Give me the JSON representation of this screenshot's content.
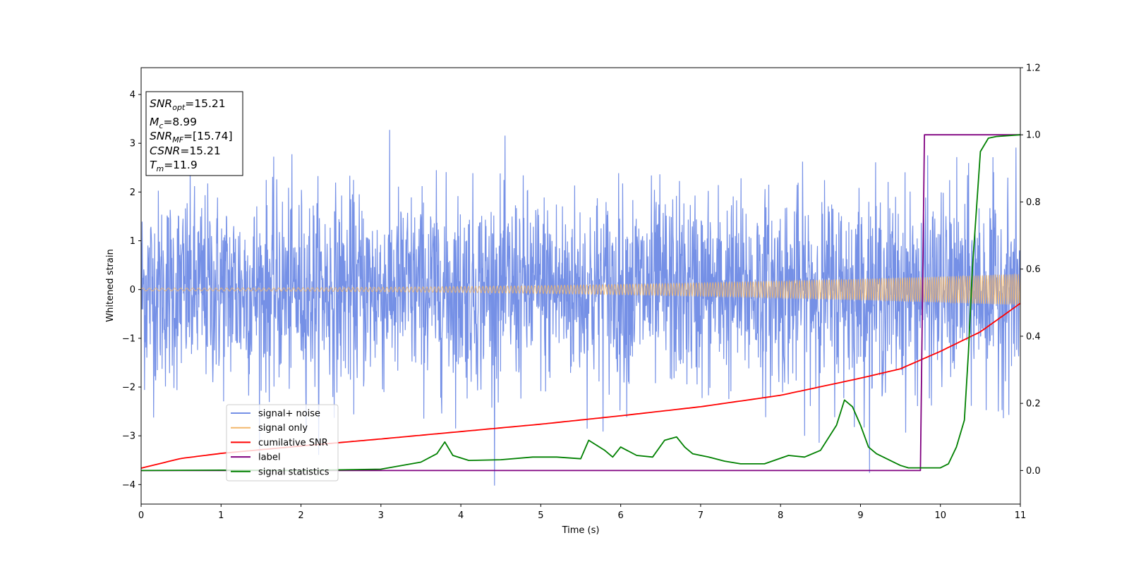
{
  "chart_data": {
    "type": "line",
    "title": "",
    "xlabel": "Time (s)",
    "ylabel": "Whitened strain",
    "xlim": [
      0,
      11
    ],
    "ylim": [
      -4.4,
      4.55
    ],
    "y2lim": [
      -0.1,
      1.2
    ],
    "grid": false,
    "x_ticks": [
      0,
      1,
      2,
      3,
      4,
      5,
      6,
      7,
      8,
      9,
      10,
      11
    ],
    "y_ticks": [
      -4,
      -3,
      -2,
      -1,
      0,
      1,
      2,
      3,
      4
    ],
    "y2_ticks": [
      "0.0",
      "0.2",
      "0.4",
      "0.6",
      "0.8",
      "1.0",
      "1.2"
    ],
    "legend_position": "lower-left",
    "info_box": {
      "position": "top-left",
      "lines": [
        {
          "sym": "SNR",
          "sub": "opt",
          "rest": "=15.21"
        },
        {
          "sym": "M",
          "sub": "c",
          "rest": "=8.99"
        },
        {
          "sym": "SNR",
          "sub": "MF",
          "rest": "=[15.74]"
        },
        {
          "sym": "CSNR",
          "sub": "",
          "rest": "=15.21"
        },
        {
          "sym": "T",
          "sub": "m",
          "rest": "=11.9"
        }
      ]
    },
    "series": [
      {
        "name": "signal+ noise",
        "axis": "left",
        "color": "#7590e6",
        "kind": "noise",
        "noise_sigma": 1.0,
        "noise_samples": 2600,
        "envelope_max": 4.18
      },
      {
        "name": "signal only",
        "axis": "left",
        "color": "#f2b76b",
        "kind": "chirp",
        "amplitude_start": 0.03,
        "amplitude_end": 0.32
      },
      {
        "name": "cumilative SNR",
        "axis": "right",
        "color": "#ff0000",
        "x": [
          0,
          0.5,
          1,
          2,
          3,
          4,
          5,
          6,
          7,
          8,
          9,
          9.5,
          10,
          10.5,
          11
        ],
        "y": [
          0.007,
          0.036,
          0.051,
          0.073,
          0.094,
          0.116,
          0.138,
          0.163,
          0.19,
          0.224,
          0.275,
          0.303,
          0.355,
          0.413,
          0.498
        ]
      },
      {
        "name": "label",
        "axis": "right",
        "color": "#800080",
        "x": [
          0,
          9.75,
          9.8,
          11
        ],
        "y": [
          0,
          0,
          1,
          1
        ]
      },
      {
        "name": "signal statistics",
        "axis": "right",
        "color": "#008000",
        "x": [
          0,
          1,
          2,
          3,
          3.5,
          3.7,
          3.8,
          3.9,
          4.1,
          4.5,
          4.9,
          5.2,
          5.5,
          5.6,
          5.8,
          5.9,
          6.0,
          6.2,
          6.4,
          6.55,
          6.7,
          6.8,
          6.9,
          7.1,
          7.3,
          7.5,
          7.8,
          8.1,
          8.3,
          8.5,
          8.7,
          8.8,
          8.9,
          9.0,
          9.1,
          9.2,
          9.5,
          9.6,
          10.0,
          10.1,
          10.2,
          10.3,
          10.35,
          10.4,
          10.5,
          10.6,
          10.7,
          11
        ],
        "y": [
          0.0,
          0.001,
          0.0,
          0.004,
          0.025,
          0.05,
          0.085,
          0.045,
          0.03,
          0.032,
          0.04,
          0.04,
          0.035,
          0.09,
          0.06,
          0.04,
          0.07,
          0.045,
          0.04,
          0.09,
          0.1,
          0.07,
          0.05,
          0.04,
          0.028,
          0.02,
          0.02,
          0.045,
          0.04,
          0.06,
          0.135,
          0.21,
          0.19,
          0.135,
          0.07,
          0.05,
          0.015,
          0.008,
          0.008,
          0.02,
          0.07,
          0.15,
          0.35,
          0.6,
          0.95,
          0.99,
          0.995,
          1.0
        ]
      }
    ]
  }
}
